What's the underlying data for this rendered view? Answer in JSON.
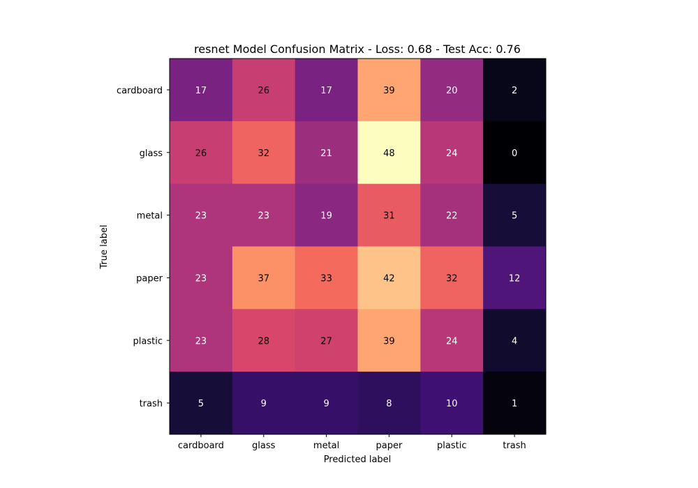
{
  "chart_data": {
    "type": "heatmap",
    "title": "resnet Model Confusion Matrix - Loss: 0.68 - Test Acc: 0.76",
    "xlabel": "Predicted label",
    "ylabel": "True label",
    "x_categories": [
      "cardboard",
      "glass",
      "metal",
      "paper",
      "plastic",
      "trash"
    ],
    "y_categories": [
      "cardboard",
      "glass",
      "metal",
      "paper",
      "plastic",
      "trash"
    ],
    "values": [
      [
        17,
        26,
        17,
        39,
        20,
        2
      ],
      [
        26,
        32,
        21,
        48,
        24,
        0
      ],
      [
        23,
        23,
        19,
        31,
        22,
        5
      ],
      [
        23,
        37,
        33,
        42,
        32,
        12
      ],
      [
        23,
        28,
        27,
        39,
        24,
        4
      ],
      [
        5,
        9,
        9,
        8,
        10,
        1
      ]
    ],
    "colormap": "magma",
    "value_range": [
      0,
      48
    ],
    "grid": false
  }
}
